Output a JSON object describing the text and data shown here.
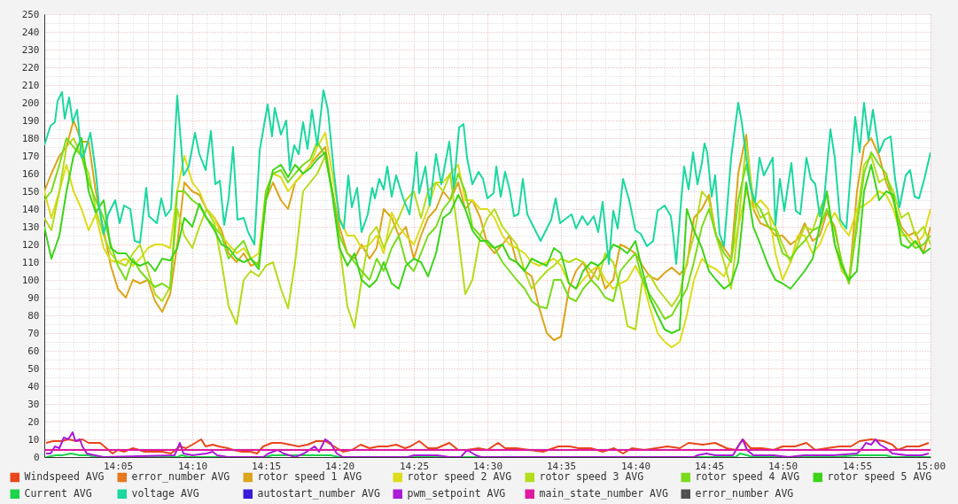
{
  "chart_data": {
    "type": "line",
    "grid": true,
    "legend": "bottom",
    "xlim": [
      14,
      15
    ],
    "xticks": [
      {
        "value": 14,
        "label": null
      },
      {
        "value": 14.017,
        "label": null
      },
      {
        "value": 14.033,
        "label": null
      },
      {
        "value": 14.05,
        "label": null
      },
      {
        "value": 14.067,
        "label": null
      },
      {
        "value": 14.083,
        "label": "14:05"
      },
      {
        "value": 14.1,
        "label": null
      },
      {
        "value": 14.117,
        "label": null
      },
      {
        "value": 14.133,
        "label": null
      },
      {
        "value": 14.15,
        "label": null
      },
      {
        "value": 14.167,
        "label": "14:10"
      },
      {
        "value": 14.183,
        "label": null
      },
      {
        "value": 14.2,
        "label": null
      },
      {
        "value": 14.217,
        "label": null
      },
      {
        "value": 14.233,
        "label": null
      },
      {
        "value": 14.25,
        "label": "14:15"
      },
      {
        "value": 14.267,
        "label": null
      },
      {
        "value": 14.283,
        "label": null
      },
      {
        "value": 14.3,
        "label": null
      },
      {
        "value": 14.317,
        "label": null
      },
      {
        "value": 14.333,
        "label": "14:20"
      },
      {
        "value": 14.35,
        "label": null
      },
      {
        "value": 14.367,
        "label": null
      },
      {
        "value": 14.383,
        "label": null
      },
      {
        "value": 14.4,
        "label": null
      },
      {
        "value": 14.417,
        "label": "14:25"
      },
      {
        "value": 14.433,
        "label": null
      },
      {
        "value": 14.45,
        "label": null
      },
      {
        "value": 14.467,
        "label": null
      },
      {
        "value": 14.483,
        "label": null
      },
      {
        "value": 14.5,
        "label": "14:30"
      },
      {
        "value": 14.517,
        "label": null
      },
      {
        "value": 14.533,
        "label": null
      },
      {
        "value": 14.55,
        "label": null
      },
      {
        "value": 14.567,
        "label": null
      },
      {
        "value": 14.583,
        "label": "14:35"
      },
      {
        "value": 14.6,
        "label": null
      },
      {
        "value": 14.617,
        "label": null
      },
      {
        "value": 14.633,
        "label": null
      },
      {
        "value": 14.65,
        "label": null
      },
      {
        "value": 14.667,
        "label": "14:40"
      },
      {
        "value": 14.683,
        "label": null
      },
      {
        "value": 14.7,
        "label": null
      },
      {
        "value": 14.717,
        "label": null
      },
      {
        "value": 14.733,
        "label": null
      },
      {
        "value": 14.75,
        "label": "14:45"
      },
      {
        "value": 14.767,
        "label": null
      },
      {
        "value": 14.783,
        "label": null
      },
      {
        "value": 14.8,
        "label": null
      },
      {
        "value": 14.817,
        "label": null
      },
      {
        "value": 14.833,
        "label": "14:50"
      },
      {
        "value": 14.85,
        "label": null
      },
      {
        "value": 14.867,
        "label": null
      },
      {
        "value": 14.883,
        "label": null
      },
      {
        "value": 14.9,
        "label": null
      },
      {
        "value": 14.917,
        "label": "14:55"
      },
      {
        "value": 14.933,
        "label": null
      },
      {
        "value": 14.95,
        "label": null
      },
      {
        "value": 14.967,
        "label": null
      },
      {
        "value": 14.983,
        "label": null
      },
      {
        "value": 15,
        "label": "15:00"
      }
    ],
    "ylim": [
      0,
      250
    ],
    "yticks": [
      0,
      {
        "value": 5,
        "label": null
      },
      10,
      {
        "value": 15,
        "label": null
      },
      20,
      {
        "value": 25,
        "label": null
      },
      30,
      {
        "value": 35,
        "label": null
      },
      40,
      {
        "value": 45,
        "label": null
      },
      50,
      {
        "value": 55,
        "label": null
      },
      60,
      {
        "value": 65,
        "label": null
      },
      70,
      {
        "value": 75,
        "label": null
      },
      80,
      {
        "value": 85,
        "label": null
      },
      90,
      {
        "value": 95,
        "label": null
      },
      100,
      {
        "value": 105,
        "label": null
      },
      110,
      {
        "value": 115,
        "label": null
      },
      120,
      {
        "value": 125,
        "label": null
      },
      130,
      {
        "value": 135,
        "label": null
      },
      140,
      {
        "value": 145,
        "label": null
      },
      150,
      {
        "value": 155,
        "label": null
      },
      160,
      {
        "value": 165,
        "label": null
      },
      170,
      {
        "value": 175,
        "label": null
      },
      180,
      {
        "value": 185,
        "label": null
      },
      190,
      {
        "value": 195,
        "label": null
      },
      200,
      {
        "value": 205,
        "label": null
      },
      210,
      {
        "value": 215,
        "label": null
      },
      220,
      {
        "value": 225,
        "label": null
      },
      230,
      {
        "value": 235,
        "label": null
      },
      240,
      {
        "value": 245,
        "label": null
      },
      250
    ],
    "x": [
      14,
      14.008,
      14.017,
      14.025,
      14.033,
      14.042,
      14.05,
      14.058,
      14.067,
      14.075,
      14.083,
      14.092,
      14.1,
      14.108,
      14.117,
      14.125,
      14.133,
      14.142,
      14.15,
      14.158,
      14.167,
      14.175,
      14.183,
      14.192,
      14.2,
      14.208,
      14.217,
      14.225,
      14.233,
      14.242,
      14.25,
      14.258,
      14.267,
      14.275,
      14.283,
      14.292,
      14.3,
      14.308,
      14.317,
      14.325,
      14.333,
      14.342,
      14.35,
      14.358,
      14.367,
      14.375,
      14.383,
      14.392,
      14.4,
      14.408,
      14.417,
      14.425,
      14.433,
      14.442,
      14.45,
      14.458,
      14.467,
      14.475,
      14.483,
      14.492,
      14.5,
      14.508,
      14.517,
      14.525,
      14.533,
      14.542,
      14.55,
      14.558,
      14.567,
      14.575,
      14.583,
      14.592,
      14.6,
      14.608,
      14.617,
      14.625,
      14.633,
      14.642,
      14.65,
      14.658,
      14.667,
      14.675,
      14.683,
      14.692,
      14.7,
      14.708,
      14.717,
      14.725,
      14.733,
      14.742,
      14.75,
      14.758,
      14.767,
      14.775,
      14.783,
      14.792,
      14.8,
      14.808,
      14.817,
      14.825,
      14.833,
      14.842,
      14.85,
      14.858,
      14.867,
      14.875,
      14.883,
      14.892,
      14.9,
      14.908,
      14.917,
      14.925,
      14.933,
      14.942,
      14.95,
      14.958,
      14.967,
      14.975,
      14.983,
      14.992,
      15
    ],
    "series": [
      {
        "name": "Windspeed AVG",
        "color": "#e8461a",
        "x": [
          14.002,
          14.01,
          14.02,
          14.027,
          14.037,
          14.043,
          14.05,
          14.057,
          14.063,
          14.07,
          14.077,
          14.083,
          14.09,
          14.1,
          14.107,
          14.113,
          14.123,
          14.133,
          14.143,
          14.153,
          14.16,
          14.167,
          14.177,
          14.182,
          14.19,
          14.197,
          14.207,
          14.213,
          14.223,
          14.233,
          14.24,
          14.247,
          14.257,
          14.267,
          14.277,
          14.287,
          14.297,
          14.307,
          14.317,
          14.327,
          14.337,
          14.347,
          14.357,
          14.367,
          14.377,
          14.387,
          14.397,
          14.407,
          14.413,
          14.423,
          14.433,
          14.443,
          14.457,
          14.467,
          14.477,
          14.49,
          14.5,
          14.512,
          14.52,
          14.533,
          14.547,
          14.563,
          14.58,
          14.593,
          14.603,
          14.617,
          14.63,
          14.643,
          14.653,
          14.663,
          14.677,
          14.69,
          14.703,
          14.717,
          14.727,
          14.743,
          14.757,
          14.77,
          14.78,
          14.788,
          14.797,
          14.81,
          14.823,
          14.833,
          14.847,
          14.86,
          14.87,
          14.883,
          14.897,
          14.91,
          14.92,
          14.933,
          14.947,
          14.957,
          14.963,
          14.973,
          14.987,
          14.998
        ],
        "values": [
          8,
          9,
          9,
          10,
          9,
          10,
          8,
          8,
          8,
          5,
          2,
          4,
          3,
          5,
          4,
          3,
          3,
          3,
          2,
          6,
          5,
          7,
          10,
          6,
          7,
          6,
          5,
          4,
          3,
          3,
          2,
          6,
          8,
          8,
          7,
          6,
          7,
          9,
          9,
          6,
          3,
          4,
          7,
          5,
          6,
          6,
          7,
          5,
          6,
          9,
          5,
          5,
          8,
          4,
          4,
          5,
          4,
          8,
          5,
          5,
          4,
          3,
          6,
          6,
          5,
          5,
          3,
          5,
          2,
          5,
          4,
          5,
          6,
          5,
          8,
          7,
          8,
          5,
          4,
          10,
          5,
          5,
          4,
          6,
          6,
          8,
          4,
          5,
          6,
          6,
          9,
          10,
          9,
          7,
          4,
          6,
          6,
          8
        ]
      },
      {
        "name": "error_number AVG",
        "color": "#e8781a",
        "values": [
          null,
          null,
          null,
          null,
          null,
          null,
          null,
          null,
          null,
          null,
          null,
          null,
          null,
          null,
          null,
          null,
          null,
          null,
          null,
          null,
          null,
          null,
          null,
          null,
          null,
          null,
          null,
          null,
          null,
          null,
          null,
          null,
          null,
          null,
          null,
          null,
          null,
          null,
          null,
          null,
          null,
          null,
          null,
          null,
          null,
          null,
          null,
          null,
          null,
          null,
          null,
          null,
          null,
          null,
          null,
          null,
          null,
          null,
          null,
          null,
          null,
          null,
          null,
          null,
          null,
          null,
          null,
          null,
          null,
          null,
          null,
          null,
          null,
          null,
          null,
          null,
          null,
          null,
          null,
          null,
          null,
          null,
          null,
          null,
          null,
          null,
          null,
          null,
          null,
          null,
          null,
          null,
          null,
          null,
          null,
          null,
          null,
          null,
          null,
          null,
          null,
          null,
          null,
          null,
          null,
          null,
          null,
          null,
          null,
          null,
          null,
          null,
          null,
          null,
          null,
          null,
          null,
          null,
          null,
          null,
          null
        ]
      },
      {
        "name": "rotor speed 1 AVG",
        "color": "#dca41a",
        "values": [
          150,
          160,
          170,
          175,
          190,
          178,
          178,
          150,
          128,
          108,
          95,
          90,
          100,
          98,
          100,
          88,
          82,
          92,
          120,
          155,
          150,
          148,
          140,
          135,
          128,
          115,
          110,
          115,
          108,
          110,
          145,
          155,
          145,
          140,
          155,
          160,
          165,
          170,
          175,
          150,
          130,
          115,
          112,
          120,
          112,
          118,
          140,
          135,
          125,
          130,
          112,
          125,
          135,
          140,
          150,
          145,
          155,
          140,
          145,
          135,
          120,
          115,
          120,
          125,
          110,
          105,
          102,
          85,
          70,
          66,
          68,
          95,
          105,
          110,
          100,
          108,
          95,
          100,
          120,
          118,
          115,
          108,
          102,
          100,
          104,
          107,
          103,
          108,
          135,
          140,
          148,
          125,
          118,
          112,
          160,
          182,
          140,
          132,
          130,
          125,
          125,
          120,
          123,
          132,
          122,
          125,
          138,
          130,
          108,
          98,
          150,
          175,
          180,
          170,
          155,
          145,
          130,
          125,
          127,
          115,
          130
        ]
      },
      {
        "name": "rotor speed 2 AVG",
        "color": "#dcdc1a",
        "values": [
          150,
          135,
          150,
          165,
          150,
          140,
          128,
          137,
          118,
          111,
          110,
          112,
          108,
          112,
          118,
          120,
          120,
          118,
          150,
          170,
          155,
          150,
          140,
          135,
          125,
          120,
          115,
          118,
          112,
          115,
          150,
          160,
          158,
          150,
          155,
          160,
          165,
          175,
          183,
          160,
          135,
          125,
          125,
          118,
          120,
          125,
          115,
          138,
          130,
          125,
          120,
          130,
          140,
          155,
          155,
          160,
          165,
          145,
          145,
          140,
          140,
          135,
          125,
          120,
          118,
          115,
          110,
          108,
          110,
          112,
          108,
          98,
          95,
          100,
          105,
          108,
          100,
          95,
          98,
          100,
          108,
          100,
          85,
          70,
          65,
          62,
          65,
          80,
          100,
          112,
          108,
          106,
          102,
          112,
          130,
          150,
          140,
          145,
          140,
          115,
          100,
          110,
          125,
          125,
          115,
          120,
          130,
          138,
          130,
          125,
          140,
          142,
          145,
          150,
          148,
          140,
          125,
          125,
          120,
          125,
          140
        ]
      },
      {
        "name": "rotor speed 3 AVG",
        "color": "#b4dc1a",
        "values": [
          135,
          128,
          150,
          175,
          180,
          170,
          160,
          140,
          125,
          115,
          110,
          108,
          115,
          120,
          105,
          92,
          88,
          96,
          140,
          125,
          118,
          130,
          140,
          132,
          110,
          85,
          75,
          100,
          105,
          102,
          108,
          110,
          95,
          84,
          110,
          150,
          155,
          160,
          170,
          150,
          120,
          85,
          73,
          100,
          125,
          130,
          118,
          128,
          135,
          145,
          150,
          135,
          150,
          155,
          150,
          160,
          125,
          92,
          100,
          125,
          135,
          140,
          130,
          125,
          120,
          105,
          95,
          100,
          105,
          108,
          112,
          110,
          112,
          110,
          105,
          100,
          115,
          110,
          95,
          74,
          72,
          100,
          103,
          95,
          90,
          85,
          92,
          110,
          125,
          150,
          145,
          125,
          110,
          95,
          130,
          178,
          145,
          135,
          138,
          130,
          120,
          110,
          120,
          130,
          128,
          140,
          148,
          120,
          105,
          100,
          135,
          165,
          170,
          155,
          158,
          150,
          135,
          138,
          125,
          130,
          120
        ]
      },
      {
        "name": "rotor speed 4 AVG",
        "color": "#78dc1a",
        "values": [
          145,
          150,
          165,
          180,
          175,
          170,
          155,
          145,
          135,
          120,
          108,
          100,
          112,
          105,
          100,
          96,
          98,
          95,
          150,
          150,
          145,
          142,
          135,
          130,
          125,
          112,
          118,
          122,
          112,
          108,
          150,
          160,
          162,
          155,
          160,
          165,
          168,
          178,
          170,
          150,
          125,
          115,
          110,
          105,
          100,
          112,
          105,
          118,
          125,
          110,
          105,
          115,
          125,
          130,
          140,
          145,
          160,
          150,
          130,
          125,
          120,
          118,
          110,
          105,
          100,
          95,
          88,
          85,
          84,
          100,
          100,
          90,
          88,
          95,
          100,
          96,
          90,
          88,
          105,
          110,
          115,
          100,
          92,
          85,
          78,
          80,
          88,
          95,
          110,
          130,
          140,
          125,
          115,
          110,
          145,
          165,
          145,
          140,
          130,
          128,
          115,
          112,
          118,
          122,
          128,
          130,
          140,
          128,
          110,
          98,
          130,
          160,
          172,
          165,
          160,
          145,
          128,
          122,
          118,
          120,
          125
        ]
      },
      {
        "name": "rotor speed 5 AVG",
        "color": "#3cd41a",
        "values": [
          130,
          112,
          125,
          150,
          170,
          180,
          150,
          138,
          145,
          118,
          115,
          115,
          110,
          108,
          110,
          105,
          112,
          111,
          118,
          135,
          130,
          143,
          135,
          128,
          120,
          118,
          112,
          110,
          112,
          106,
          145,
          162,
          165,
          158,
          165,
          160,
          163,
          168,
          172,
          148,
          118,
          108,
          115,
          100,
          96,
          100,
          110,
          98,
          95,
          108,
          112,
          110,
          102,
          115,
          135,
          138,
          148,
          140,
          128,
          122,
          122,
          118,
          120,
          112,
          110,
          105,
          112,
          110,
          108,
          118,
          115,
          98,
          95,
          105,
          110,
          108,
          112,
          120,
          118,
          115,
          122,
          105,
          90,
          80,
          72,
          70,
          72,
          140,
          128,
          118,
          105,
          100,
          95,
          98,
          110,
          155,
          130,
          120,
          108,
          100,
          98,
          95,
          100,
          105,
          112,
          130,
          150,
          120,
          108,
          100,
          105,
          150,
          165,
          145,
          150,
          148,
          120,
          118,
          122,
          115,
          118
        ]
      },
      {
        "name": "Current AVG",
        "color": "#1ad44a",
        "x": [
          14.002,
          14.013,
          14.02,
          14.03,
          14.04,
          14.05,
          14.057,
          14.15,
          14.155,
          14.163,
          14.25,
          14.257,
          14.283,
          14.31,
          14.323,
          14.333,
          14.78,
          14.785,
          14.793,
          14.8,
          14.89,
          14.917,
          14.937,
          14.95,
          14.957,
          15
        ],
        "values": [
          0,
          1,
          1,
          2,
          1,
          1,
          0,
          0,
          1,
          0,
          0,
          1,
          1,
          1,
          1,
          0,
          0,
          2,
          1,
          0,
          0,
          1,
          1,
          1,
          0,
          0
        ]
      },
      {
        "name": "voltage AVG",
        "color": "#1ad8a0",
        "x": [
          14,
          14.007,
          14.012,
          14.015,
          14.02,
          14.023,
          14.028,
          14.032,
          14.037,
          14.042,
          14.045,
          14.052,
          14.058,
          14.062,
          14.067,
          14.072,
          14.08,
          14.085,
          14.09,
          14.097,
          14.102,
          14.108,
          14.115,
          14.118,
          14.127,
          14.132,
          14.137,
          14.143,
          14.15,
          14.157,
          14.163,
          14.17,
          14.175,
          14.182,
          14.188,
          14.193,
          14.198,
          14.203,
          14.208,
          14.213,
          14.218,
          14.225,
          14.23,
          14.237,
          14.243,
          14.252,
          14.257,
          14.26,
          14.267,
          14.273,
          14.277,
          14.282,
          14.287,
          14.292,
          14.297,
          14.302,
          14.308,
          14.315,
          14.32,
          14.327,
          14.333,
          14.338,
          14.343,
          14.347,
          14.353,
          14.358,
          14.365,
          14.37,
          14.373,
          14.378,
          14.383,
          14.387,
          14.392,
          14.397,
          14.405,
          14.412,
          14.417,
          14.42,
          14.423,
          14.43,
          14.435,
          14.442,
          14.448,
          14.457,
          14.462,
          14.468,
          14.473,
          14.477,
          14.483,
          14.49,
          14.495,
          14.5,
          14.507,
          14.51,
          14.515,
          14.52,
          14.525,
          14.53,
          14.535,
          14.54,
          14.545,
          14.553,
          14.56,
          14.567,
          14.572,
          14.577,
          14.582,
          14.587,
          14.595,
          14.6,
          14.607,
          14.613,
          14.62,
          14.625,
          14.63,
          14.637,
          14.642,
          14.647,
          14.653,
          14.66,
          14.667,
          14.673,
          14.68,
          14.687,
          14.692,
          14.7,
          14.707,
          14.71,
          14.713,
          14.718,
          14.722,
          14.727,
          14.732,
          14.737,
          14.742,
          14.745,
          14.748,
          14.753,
          14.757,
          14.762,
          14.767,
          14.775,
          14.783,
          14.787,
          14.792,
          14.797,
          14.802,
          14.807,
          14.812,
          14.817,
          14.822,
          14.825,
          14.83,
          14.835,
          14.843,
          14.848,
          14.853,
          14.86,
          14.865,
          14.87,
          14.875,
          14.88,
          14.887,
          14.892,
          14.898,
          14.905,
          14.91,
          14.915,
          14.92,
          14.925,
          14.93,
          14.935,
          14.942,
          14.948,
          14.955,
          14.96,
          14.965,
          14.972,
          14.977,
          14.982,
          14.987,
          14.993,
          15
        ],
        "values": [
          176,
          187,
          189,
          201,
          206,
          191,
          203,
          189,
          196,
          169,
          171,
          183,
          161,
          141,
          126,
          137,
          145,
          132,
          142,
          140,
          122,
          121,
          152,
          136,
          132,
          146,
          136,
          140,
          204,
          159,
          164,
          183,
          171,
          162,
          184,
          154,
          156,
          131,
          146,
          175,
          134,
          135,
          127,
          120,
          173,
          199,
          181,
          197,
          182,
          190,
          162,
          176,
          171,
          189,
          174,
          196,
          176,
          207,
          196,
          160,
          134,
          129,
          159,
          141,
          152,
          127,
          137,
          152,
          146,
          157,
          151,
          164,
          147,
          159,
          146,
          137,
          156,
          172,
          149,
          164,
          142,
          171,
          154,
          178,
          152,
          186,
          188,
          169,
          154,
          161,
          157,
          146,
          149,
          164,
          147,
          161,
          151,
          136,
          137,
          157,
          137,
          129,
          122,
          129,
          134,
          146,
          132,
          134,
          137,
          129,
          136,
          131,
          136,
          127,
          144,
          109,
          139,
          129,
          157,
          145,
          128,
          126,
          119,
          122,
          139,
          142,
          136,
          124,
          109,
          141,
          164,
          151,
          172,
          154,
          166,
          177,
          172,
          147,
          159,
          126,
          119,
          169,
          200,
          189,
          169,
          152,
          144,
          169,
          159,
          164,
          169,
          131,
          157,
          139,
          166,
          139,
          137,
          169,
          157,
          154,
          136,
          146,
          185,
          169,
          134,
          129,
          161,
          192,
          172,
          200,
          179,
          196,
          172,
          179,
          181,
          157,
          141,
          159,
          162,
          147,
          146,
          157,
          172
        ]
      },
      {
        "name": "autostart_number AVG",
        "color": "#3a1ad8",
        "values": [
          null,
          null,
          null,
          null,
          null,
          null,
          null,
          null,
          null,
          null,
          null,
          null,
          null,
          null,
          null,
          null,
          null,
          null,
          null,
          null,
          null,
          null,
          null,
          null,
          null,
          null,
          null,
          null,
          null,
          null,
          null,
          null,
          null,
          null,
          null,
          null,
          null,
          null,
          null,
          null,
          null,
          null,
          null,
          null,
          null,
          null,
          null,
          null,
          null,
          null,
          null,
          null,
          null,
          null,
          null,
          null,
          null,
          null,
          null,
          null,
          null,
          null,
          null,
          null,
          null,
          null,
          null,
          null,
          null,
          null,
          null,
          null,
          null,
          null,
          null,
          null,
          null,
          null,
          null,
          null,
          null,
          null,
          null,
          null,
          null,
          null,
          null,
          null,
          null,
          null,
          null,
          null,
          null,
          null,
          null,
          null,
          null,
          null,
          null,
          null,
          null,
          null,
          null,
          null,
          null,
          null,
          null,
          null,
          null,
          null,
          null,
          null,
          null,
          null,
          null,
          null,
          null,
          null,
          null,
          null,
          null
        ]
      },
      {
        "name": "pwm_setpoint AVG",
        "color": "#aa1ad8",
        "x": [
          14.002,
          14.007,
          14.012,
          14.017,
          14.022,
          14.027,
          14.032,
          14.035,
          14.04,
          14.043,
          14.048,
          14.057,
          14.067,
          14.147,
          14.153,
          14.157,
          14.167,
          14.183,
          14.19,
          14.195,
          14.207,
          14.247,
          14.253,
          14.263,
          14.27,
          14.283,
          14.293,
          14.305,
          14.31,
          14.317,
          14.323,
          14.33,
          14.337,
          14.41,
          14.417,
          14.43,
          14.443,
          14.457,
          14.47,
          14.477,
          14.487,
          14.493,
          14.733,
          14.737,
          14.747,
          14.757,
          14.777,
          14.783,
          14.788,
          14.793,
          14.8,
          14.81,
          14.823,
          14.84,
          14.857,
          14.873,
          14.89,
          14.917,
          14.923,
          14.927,
          14.933,
          14.938,
          14.943,
          14.95,
          14.957,
          14.973,
          14.99,
          14.998
        ],
        "values": [
          2,
          2,
          6,
          5,
          11,
          10,
          14,
          9,
          10,
          6,
          2,
          1,
          0,
          1,
          8,
          2,
          1,
          2,
          3,
          1,
          0,
          0,
          2,
          4,
          2,
          0,
          2,
          6,
          3,
          10,
          8,
          2,
          0,
          0,
          1,
          1,
          1,
          0,
          0,
          4,
          1,
          0,
          0,
          1,
          2,
          1,
          1,
          6,
          10,
          4,
          1,
          1,
          1,
          0,
          1,
          1,
          1,
          2,
          5,
          8,
          7,
          10,
          7,
          5,
          2,
          1,
          1,
          2
        ]
      },
      {
        "name": "main_state_number AVG",
        "color": "#e01aa0",
        "x": [
          14,
          15
        ],
        "values": [
          4,
          4
        ]
      },
      {
        "name": "error_number AVG",
        "color": "#505050",
        "values": [
          null,
          null,
          null,
          null,
          null,
          null,
          null,
          null,
          null,
          null,
          null,
          null,
          null,
          null,
          null,
          null,
          null,
          null,
          null,
          null,
          null,
          null,
          null,
          null,
          null,
          null,
          null,
          null,
          null,
          null,
          null,
          null,
          null,
          null,
          null,
          null,
          null,
          null,
          null,
          null,
          null,
          null,
          null,
          null,
          null,
          null,
          null,
          null,
          null,
          null,
          null,
          null,
          null,
          null,
          null,
          null,
          null,
          null,
          null,
          null,
          null,
          null,
          null,
          null,
          null,
          null,
          null,
          null,
          null,
          null,
          null,
          null,
          null,
          null,
          null,
          null,
          null,
          null,
          null,
          null,
          null,
          null,
          null,
          null,
          null,
          null,
          null,
          null,
          null,
          null,
          null,
          null,
          null,
          null,
          null,
          null,
          null,
          null,
          null,
          null,
          null,
          null,
          null,
          null,
          null,
          null,
          null,
          null,
          null,
          null,
          null,
          null,
          null,
          null,
          null,
          null,
          null,
          null,
          null,
          null,
          null
        ]
      }
    ]
  }
}
